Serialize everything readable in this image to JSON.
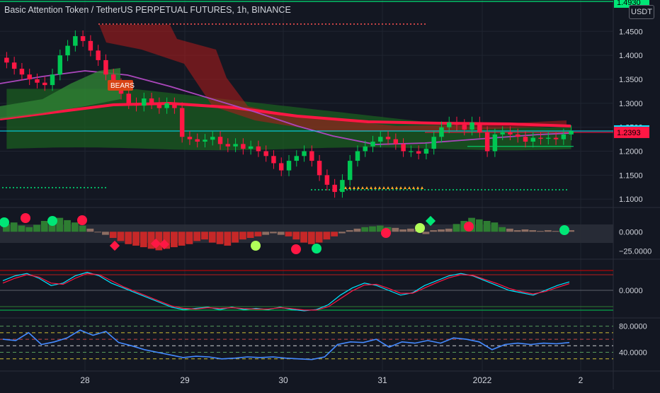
{
  "title": "Basic Attention Token / TetherUS PERPETUAL FUTURES, 1h, BINANCE",
  "currency_button": "USDT",
  "colors": {
    "background": "#131722",
    "bull": "#00c853",
    "bear": "#ff1744",
    "grid": "#1f2430",
    "axis_text": "#d1d4dc",
    "cyan_line": "#00e5ff",
    "red_line": "#ff1744"
  },
  "chart_data": [
    {
      "type": "candlestick",
      "panel": "price",
      "title": "Basic Attention Token / TetherUS PERPETUAL FUTURES, 1h, BINANCE",
      "x_tick_labels": [
        "28",
        "29",
        "30",
        "31",
        "2022",
        "2"
      ],
      "y_tick_labels": [
        "1.4500",
        "1.4000",
        "1.3500",
        "1.3000",
        "1.2500",
        "1.2000",
        "1.1500",
        "1.1000"
      ],
      "ylim": [
        1.09,
        1.48
      ],
      "price_labels": [
        {
          "text": "1.4930",
          "color": "#00e676"
        },
        {
          "text": "1.2422",
          "color": "#00e5ff"
        },
        {
          "text": "1.2393",
          "color": "#ff1744"
        }
      ],
      "annotation": "BEARS",
      "close": [
        1.385,
        1.372,
        1.36,
        1.35,
        1.343,
        1.338,
        1.36,
        1.4,
        1.42,
        1.44,
        1.43,
        1.41,
        1.39,
        1.36,
        1.34,
        1.32,
        1.3,
        1.295,
        1.31,
        1.3,
        1.29,
        1.3,
        1.29,
        1.23,
        1.225,
        1.22,
        1.224,
        1.23,
        1.215,
        1.21,
        1.215,
        1.205,
        1.21,
        1.2,
        1.19,
        1.175,
        1.16,
        1.18,
        1.19,
        1.2,
        1.18,
        1.15,
        1.13,
        1.115,
        1.14,
        1.18,
        1.2,
        1.21,
        1.22,
        1.23,
        1.225,
        1.215,
        1.2,
        1.2,
        1.195,
        1.205,
        1.23,
        1.25,
        1.26,
        1.255,
        1.245,
        1.26,
        1.24,
        1.2,
        1.235,
        1.24,
        1.235,
        1.23,
        1.22,
        1.228,
        1.226,
        1.228,
        1.225,
        1.235,
        1.242
      ]
    },
    {
      "type": "bar",
      "panel": "momentum",
      "y_tick_labels": [
        "0.0000",
        "−25.0000"
      ],
      "ylim": [
        -30,
        25
      ],
      "values": [
        10,
        12,
        8,
        6,
        9,
        14,
        16,
        18,
        15,
        12,
        8,
        4,
        0,
        -4,
        -8,
        -12,
        -16,
        -18,
        -20,
        -22,
        -24,
        -22,
        -20,
        -18,
        -16,
        -12,
        -10,
        -14,
        -16,
        -18,
        -14,
        -10,
        -8,
        -6,
        -4,
        -2,
        -4,
        -6,
        -10,
        -14,
        -16,
        -14,
        -10,
        -6,
        -2,
        2,
        4,
        6,
        7,
        8,
        6,
        5,
        3,
        4,
        2,
        -3,
        2,
        3,
        4,
        10,
        14,
        18,
        16,
        14,
        12,
        6,
        4,
        2,
        3,
        2,
        1,
        2,
        1,
        2,
        2
      ]
    },
    {
      "type": "line",
      "panel": "oscillator",
      "y_tick_labels": [
        "0.0000"
      ],
      "ylim": [
        -1,
        1
      ],
      "series": [
        {
          "values": [
            0.4,
            0.6,
            0.7,
            0.5,
            0.2,
            0.3,
            0.6,
            0.75,
            0.6,
            0.3,
            0.1,
            -0.1,
            -0.3,
            -0.5,
            -0.7,
            -0.8,
            -0.75,
            -0.7,
            -0.8,
            -0.7,
            -0.8,
            -0.75,
            -0.8,
            -0.7,
            -0.8,
            -0.85,
            -0.8,
            -0.6,
            -0.2,
            0.1,
            0.3,
            0.2,
            0.0,
            -0.2,
            -0.1,
            0.2,
            0.4,
            0.6,
            0.7,
            0.6,
            0.4,
            0.2,
            0.0,
            -0.1,
            -0.2,
            0.0,
            0.2,
            0.35
          ],
          "color": "#00e5ff"
        },
        {
          "values": [
            0.3,
            0.5,
            0.65,
            0.55,
            0.3,
            0.25,
            0.5,
            0.7,
            0.65,
            0.4,
            0.15,
            -0.05,
            -0.25,
            -0.45,
            -0.65,
            -0.75,
            -0.78,
            -0.72,
            -0.75,
            -0.72,
            -0.76,
            -0.78,
            -0.78,
            -0.72,
            -0.76,
            -0.82,
            -0.82,
            -0.68,
            -0.35,
            -0.02,
            0.22,
            0.25,
            0.08,
            -0.12,
            -0.12,
            0.1,
            0.32,
            0.52,
            0.65,
            0.62,
            0.45,
            0.28,
            0.08,
            -0.05,
            -0.15,
            -0.05,
            0.12,
            0.28
          ],
          "color": "#ff1744"
        }
      ]
    },
    {
      "type": "line",
      "panel": "rsi",
      "y_tick_labels": [
        "80.0000",
        "40.0000"
      ],
      "ylim": [
        20,
        85
      ],
      "series": [
        {
          "values": [
            60,
            58,
            70,
            52,
            56,
            62,
            74,
            66,
            72,
            55,
            50,
            44,
            40,
            36,
            32,
            34,
            33,
            30,
            31,
            33,
            32,
            33,
            31,
            30,
            29,
            33,
            52,
            56,
            55,
            60,
            48,
            56,
            54,
            58,
            54,
            62,
            60,
            56,
            44,
            52,
            54,
            52,
            54,
            53,
            55
          ],
          "color": "#448aff"
        }
      ]
    }
  ]
}
